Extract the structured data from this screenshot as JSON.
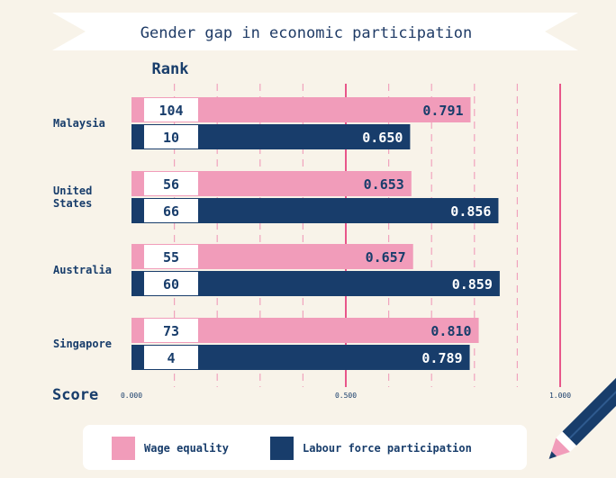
{
  "title": "Gender gap in economic participation",
  "rank_label": "Rank",
  "score_label": "Score",
  "colors": {
    "wage": "#f19cba",
    "labour": "#183d6b",
    "background": "#f8f3e9",
    "accent_line": "#e8568a"
  },
  "chart_data": {
    "type": "bar",
    "orientation": "horizontal",
    "categories": [
      "Malaysia",
      "United States",
      "Australia",
      "Singapore"
    ],
    "category_label_lines": [
      [
        "Malaysia"
      ],
      [
        "United",
        "States"
      ],
      [
        "Australia"
      ],
      [
        "Singapore"
      ]
    ],
    "series": [
      {
        "name": "Wage equality",
        "values": [
          0.791,
          0.653,
          0.657,
          0.81
        ],
        "value_labels": [
          "0.791",
          "0.653",
          "0.657",
          "0.810"
        ],
        "ranks": [
          "104",
          "56",
          "55",
          "73"
        ]
      },
      {
        "name": "Labour force participation",
        "values": [
          0.65,
          0.856,
          0.859,
          0.789
        ],
        "value_labels": [
          "0.650",
          "0.856",
          "0.859",
          "0.789"
        ],
        "ranks": [
          "10",
          "66",
          "60",
          "4"
        ]
      }
    ],
    "xlim": [
      0,
      1
    ],
    "x_ticks": [
      0,
      0.5,
      1
    ],
    "x_tick_labels": [
      "0.000",
      "0.500",
      "1.000"
    ],
    "grid": true,
    "legend_position": "bottom"
  }
}
